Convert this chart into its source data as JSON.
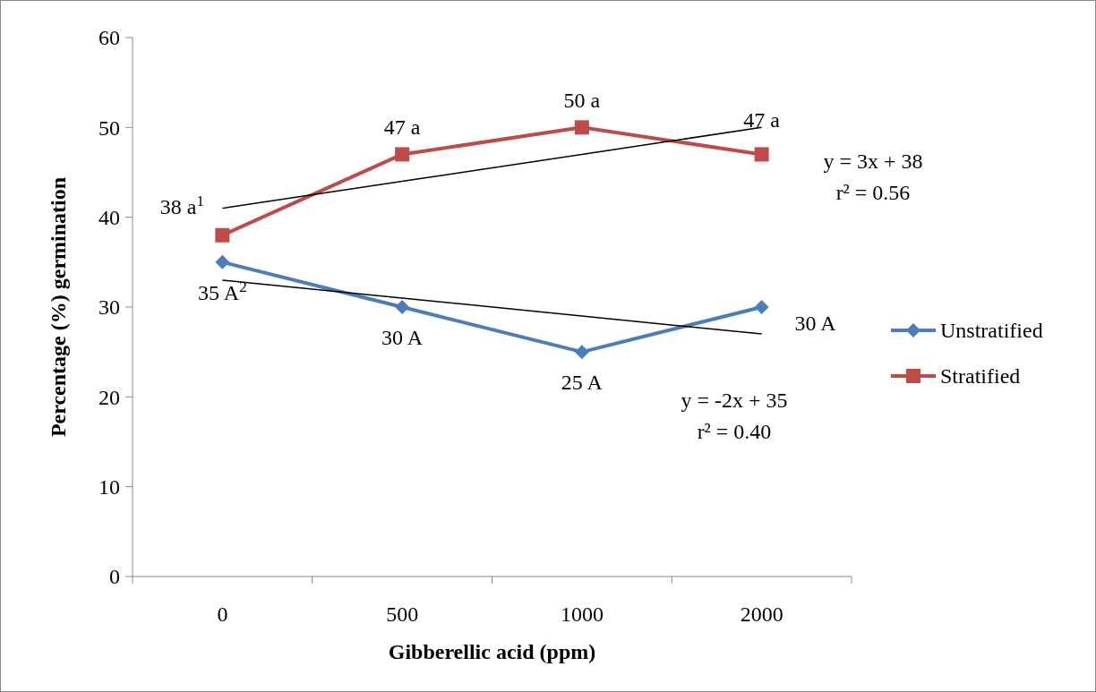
{
  "chart_data": {
    "type": "line",
    "xlabel": "Gibberellic acid (ppm)",
    "ylabel": "Percentage (%) germination",
    "categories": [
      "0",
      "500",
      "1000",
      "2000"
    ],
    "ylim": [
      0,
      60
    ],
    "yticks": [
      0,
      10,
      20,
      30,
      40,
      50,
      60
    ],
    "grid": false,
    "legend": "right",
    "series": [
      {
        "name": "Unstratified",
        "color": "#4a7ebb",
        "values": [
          35,
          30,
          25,
          30
        ],
        "marker": "diamond",
        "value_labels": [
          "35 A$^{2}$",
          "30 A",
          "25 A",
          "30 A"
        ]
      },
      {
        "name": "Stratified",
        "color": "#be4b48",
        "values": [
          38,
          47,
          50,
          47
        ],
        "marker": "square",
        "value_labels": [
          "38 a$^{1}$",
          "47 a",
          "50 a",
          "47 a"
        ]
      },
      {
        "color": "#000000",
        "values": [
          33,
          31,
          29,
          27
        ],
        "marker": "none"
      },
      {
        "color": "#000000",
        "values": [
          41,
          44,
          47,
          50
        ],
        "marker": "none"
      }
    ],
    "annotations": [
      "y = 3x + 38",
      "r² = 0.56",
      "y = -2x + 35",
      "r² = 0.40"
    ]
  }
}
